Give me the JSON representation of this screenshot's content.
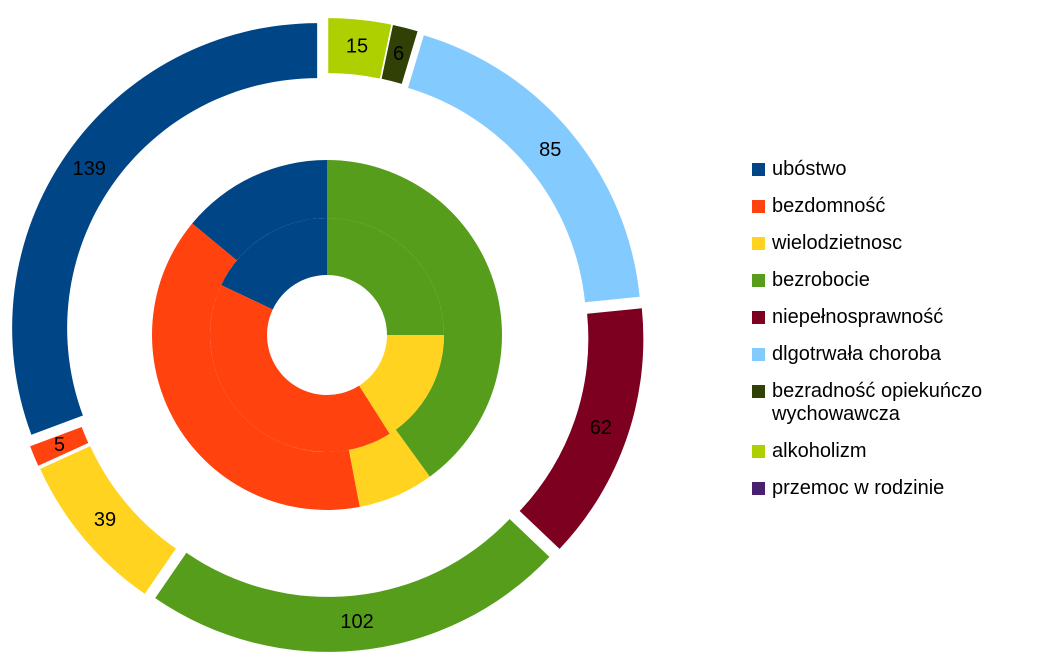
{
  "chart_data": {
    "type": "donut",
    "categories": [
      "ubóstwo",
      "bezdomność",
      "wielodzietnosc",
      "bezrobocie",
      "niepełnosprawność",
      "dlgotrwała choroba",
      "bezradność opiekuńczo wychowawcza",
      "alkoholizm",
      "przemoc w rodzinie"
    ],
    "colors": [
      "#004586",
      "#ff420e",
      "#ffd320",
      "#579d1c",
      "#7e0021",
      "#83caff",
      "#314004",
      "#aecf00",
      "#4b1f6f"
    ],
    "series": [
      {
        "values": [
          139,
          5,
          39,
          102,
          62,
          85,
          6,
          15,
          0
        ],
        "data_labels": true,
        "exploded": true
      },
      {
        "values": [
          14,
          39,
          7,
          40,
          0,
          0,
          0,
          0,
          0
        ]
      },
      {
        "values": [
          18,
          41,
          16,
          25,
          0,
          0,
          0,
          0,
          0
        ]
      }
    ],
    "legend": "right"
  }
}
